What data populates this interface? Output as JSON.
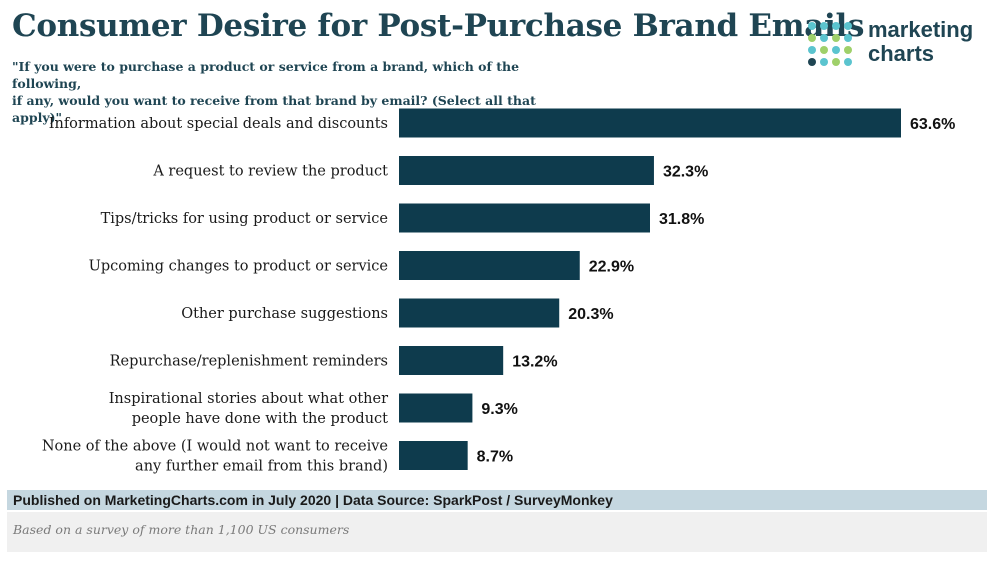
{
  "header": {
    "title": "Consumer Desire for Post-Purchase Brand Emails",
    "subtitle_line1": "\"If you were to purchase a product or service from a brand, which of the following,",
    "subtitle_line2": "if any, would you want to receive from that brand by email? (Select all that apply)\""
  },
  "logo": {
    "line1": "marketing",
    "line2": "charts",
    "dot_colors": [
      "#5bc4cf",
      "#9fd06a",
      "#1f4553"
    ]
  },
  "chart_data": {
    "type": "bar",
    "orientation": "horizontal",
    "categories": [
      [
        "Information about special deals and discounts"
      ],
      [
        "A request to review the product"
      ],
      [
        "Tips/tricks for using product or service"
      ],
      [
        "Upcoming changes to product or service"
      ],
      [
        "Other purchase suggestions"
      ],
      [
        "Repurchase/replenishment reminders"
      ],
      [
        "Inspirational stories about what other",
        "people have done with the product"
      ],
      [
        "None of the above (I would not want to receive",
        "any further email from this brand)"
      ]
    ],
    "values": [
      63.6,
      32.3,
      31.8,
      22.9,
      20.3,
      13.2,
      9.3,
      8.7
    ],
    "value_labels": [
      "63.6%",
      "32.3%",
      "31.8%",
      "22.9%",
      "20.3%",
      "13.2%",
      "9.3%",
      "8.7%"
    ],
    "unit": "%",
    "bar_color": "#0e3b4d",
    "xlim": [
      0,
      63.6
    ],
    "grid": false
  },
  "footer": {
    "published": "Published on MarketingCharts.com in July 2020 | Data Source: SparkPost / SurveyMonkey",
    "note": "Based on a survey of more than 1,100 US consumers"
  }
}
